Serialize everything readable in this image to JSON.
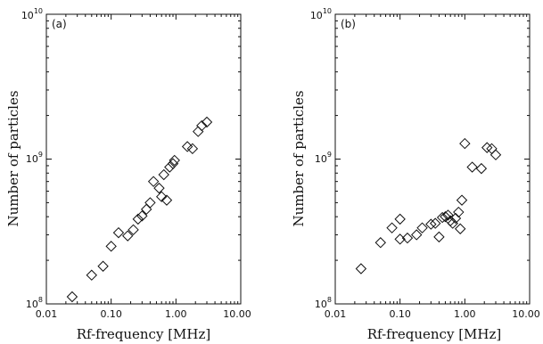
{
  "chart_data": [
    {
      "type": "scatter",
      "panel_label": "(a)",
      "xlabel": "Rf-frequency [MHz]",
      "ylabel": "Number of particles",
      "xscale": "log",
      "yscale": "log",
      "xlim": [
        0.01,
        10.0
      ],
      "ylim": [
        100000000.0,
        10000000000.0
      ],
      "xticks": [
        "0.01",
        "0.10",
        "1.00",
        "10.00"
      ],
      "yticks": [
        {
          "base": "10",
          "exp": "8"
        },
        {
          "base": "10",
          "exp": "9"
        },
        {
          "base": "10",
          "exp": "10"
        }
      ],
      "marker": "diamond-open",
      "points": [
        {
          "x": 0.025,
          "y": 112000000.0
        },
        {
          "x": 0.05,
          "y": 158000000.0
        },
        {
          "x": 0.075,
          "y": 182000000.0
        },
        {
          "x": 0.1,
          "y": 250000000.0
        },
        {
          "x": 0.13,
          "y": 310000000.0
        },
        {
          "x": 0.18,
          "y": 295000000.0
        },
        {
          "x": 0.22,
          "y": 325000000.0
        },
        {
          "x": 0.26,
          "y": 385000000.0
        },
        {
          "x": 0.3,
          "y": 405000000.0
        },
        {
          "x": 0.35,
          "y": 450000000.0
        },
        {
          "x": 0.4,
          "y": 500000000.0
        },
        {
          "x": 0.45,
          "y": 700000000.0
        },
        {
          "x": 0.55,
          "y": 630000000.0
        },
        {
          "x": 0.6,
          "y": 550000000.0
        },
        {
          "x": 0.65,
          "y": 780000000.0
        },
        {
          "x": 0.72,
          "y": 520000000.0
        },
        {
          "x": 0.8,
          "y": 880000000.0
        },
        {
          "x": 0.9,
          "y": 930000000.0
        },
        {
          "x": 0.95,
          "y": 980000000.0
        },
        {
          "x": 1.5,
          "y": 1220000000.0
        },
        {
          "x": 1.8,
          "y": 1180000000.0
        },
        {
          "x": 2.2,
          "y": 1550000000.0
        },
        {
          "x": 2.5,
          "y": 1700000000.0
        },
        {
          "x": 3.0,
          "y": 1800000000.0
        }
      ]
    },
    {
      "type": "scatter",
      "panel_label": "(b)",
      "xlabel": "Rf-frequency [MHz]",
      "ylabel": "Number of particles",
      "xscale": "log",
      "yscale": "log",
      "xlim": [
        0.01,
        10.0
      ],
      "ylim": [
        100000000.0,
        10000000000.0
      ],
      "xticks": [
        "0.01",
        "0.10",
        "1.00",
        "10.00"
      ],
      "yticks": [
        {
          "base": "10",
          "exp": "8"
        },
        {
          "base": "10",
          "exp": "9"
        },
        {
          "base": "10",
          "exp": "10"
        }
      ],
      "marker": "diamond-open",
      "points": [
        {
          "x": 0.025,
          "y": 175000000.0
        },
        {
          "x": 0.05,
          "y": 265000000.0
        },
        {
          "x": 0.075,
          "y": 335000000.0
        },
        {
          "x": 0.1,
          "y": 385000000.0
        },
        {
          "x": 0.1,
          "y": 280000000.0
        },
        {
          "x": 0.13,
          "y": 285000000.0
        },
        {
          "x": 0.18,
          "y": 300000000.0
        },
        {
          "x": 0.22,
          "y": 335000000.0
        },
        {
          "x": 0.3,
          "y": 355000000.0
        },
        {
          "x": 0.35,
          "y": 360000000.0
        },
        {
          "x": 0.4,
          "y": 290000000.0
        },
        {
          "x": 0.45,
          "y": 395000000.0
        },
        {
          "x": 0.5,
          "y": 400000000.0
        },
        {
          "x": 0.55,
          "y": 410000000.0
        },
        {
          "x": 0.6,
          "y": 375000000.0
        },
        {
          "x": 0.65,
          "y": 360000000.0
        },
        {
          "x": 0.72,
          "y": 390000000.0
        },
        {
          "x": 0.8,
          "y": 430000000.0
        },
        {
          "x": 0.85,
          "y": 330000000.0
        },
        {
          "x": 0.9,
          "y": 520000000.0
        },
        {
          "x": 1.0,
          "y": 1280000000.0
        },
        {
          "x": 1.3,
          "y": 880000000.0
        },
        {
          "x": 1.8,
          "y": 860000000.0
        },
        {
          "x": 2.2,
          "y": 1200000000.0
        },
        {
          "x": 2.6,
          "y": 1180000000.0
        },
        {
          "x": 3.0,
          "y": 1070000000.0
        }
      ]
    }
  ]
}
